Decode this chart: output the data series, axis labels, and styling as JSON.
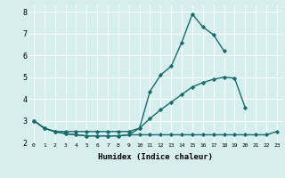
{
  "line1_x": [
    0,
    1,
    2,
    3,
    4,
    5,
    6,
    7,
    8,
    9,
    10,
    11,
    12,
    13,
    14,
    15,
    16,
    17,
    18
  ],
  "line1_y": [
    3.0,
    2.65,
    2.5,
    2.4,
    2.35,
    2.3,
    2.3,
    2.3,
    2.3,
    2.35,
    2.65,
    4.35,
    5.1,
    5.5,
    6.6,
    7.9,
    7.3,
    6.95,
    6.2
  ],
  "line2_x": [
    0,
    1,
    2,
    3,
    4,
    5,
    6,
    7,
    8,
    9,
    10,
    11,
    12,
    13,
    14,
    15,
    16,
    17,
    18,
    19,
    20
  ],
  "line2_y": [
    3.0,
    2.65,
    2.5,
    2.5,
    2.5,
    2.5,
    2.5,
    2.5,
    2.5,
    2.5,
    2.65,
    3.1,
    3.5,
    3.85,
    4.2,
    4.55,
    4.75,
    4.9,
    5.0,
    4.95,
    3.6
  ],
  "line3_x": [
    0,
    1,
    2,
    3,
    4,
    5,
    6,
    7,
    8,
    9,
    10,
    11,
    12,
    13,
    14,
    15,
    16,
    17,
    18,
    19,
    20,
    21,
    22,
    23
  ],
  "line3_y": [
    3.0,
    2.65,
    2.5,
    2.4,
    2.35,
    2.3,
    2.3,
    2.3,
    2.3,
    2.35,
    2.35,
    2.35,
    2.35,
    2.35,
    2.35,
    2.35,
    2.35,
    2.35,
    2.35,
    2.35,
    2.35,
    2.35,
    2.35,
    2.5
  ],
  "color": "#1a6b6b",
  "bg_color": "#d6eeee",
  "grid_color": "#ffffff",
  "xlabel": "Humidex (Indice chaleur)",
  "xlim": [
    -0.5,
    23.5
  ],
  "ylim": [
    2.0,
    8.3
  ],
  "yticks": [
    2,
    3,
    4,
    5,
    6,
    7,
    8
  ],
  "xticks": [
    0,
    1,
    2,
    3,
    4,
    5,
    6,
    7,
    8,
    9,
    10,
    11,
    12,
    13,
    14,
    15,
    16,
    17,
    18,
    19,
    20,
    21,
    22,
    23
  ],
  "marker": "D",
  "markersize": 2.2,
  "linewidth": 1.0
}
